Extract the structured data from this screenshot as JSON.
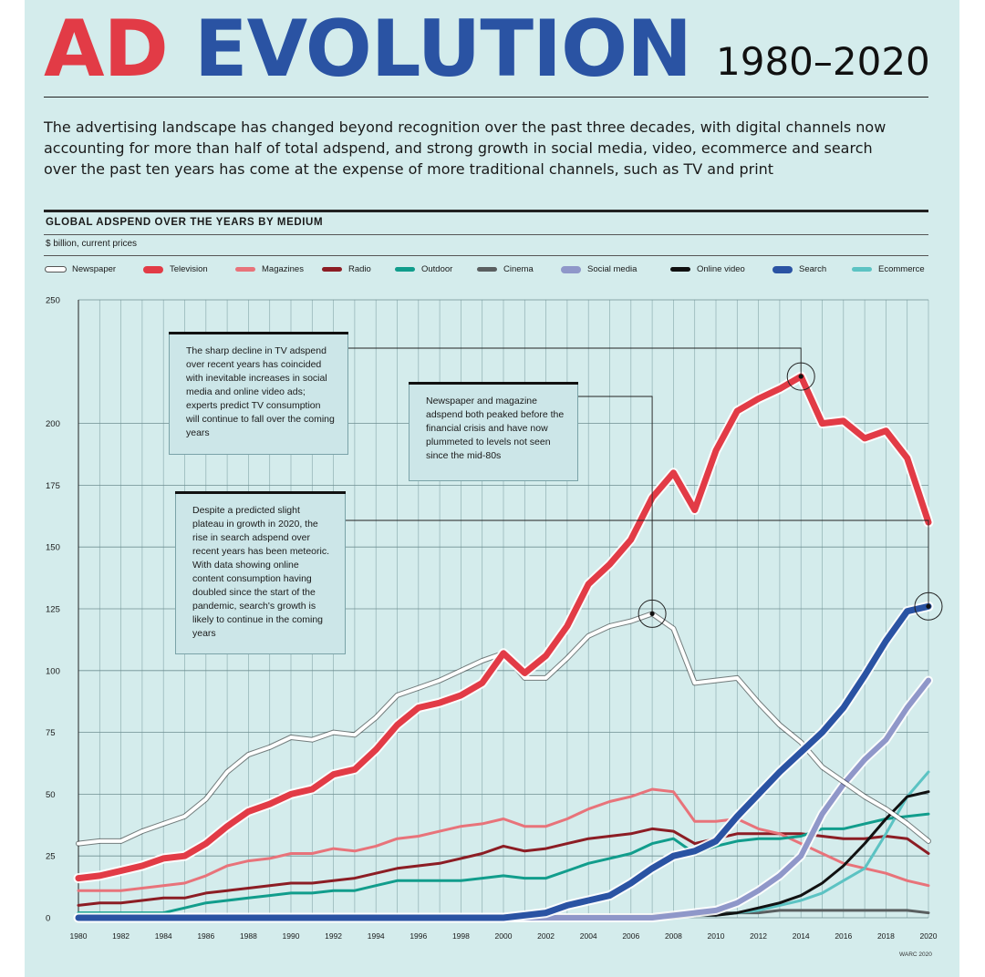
{
  "header": {
    "title_part1": "AD",
    "title_part2": "EVOLUTION",
    "years": "1980–2020",
    "intro": "The advertising landscape has changed beyond recognition over the past three decades, with digital channels now accounting for more than half of total adspend, and strong growth in social media, video, ecommerce and search over the past ten years has come at the expense of more traditional channels, such as TV and print"
  },
  "annotations": [
    "The sharp decline in TV adspend over recent years has coincided with inevitable increases in social media and online video ads; experts predict TV consumption will continue to fall over the coming years",
    "Newspaper and magazine adspend both peaked before the financial crisis and have now plummeted to levels not seen since the mid-80s",
    "Despite a predicted slight plateau in growth in 2020, the rise in search adspend over recent years has been meteoric. With data showing online content consumption having doubled since the start of the pandemic, search's growth is likely to continue in the coming years"
  ],
  "credit": "WARC 2020",
  "chart_data": {
    "type": "line",
    "title": "GLOBAL ADSPEND OVER THE YEARS BY MEDIUM",
    "ylabel": "$ billion, current prices",
    "xlabel": "",
    "ylim": [
      0,
      250
    ],
    "yticks": [
      0,
      25,
      50,
      75,
      100,
      125,
      150,
      175,
      200,
      250
    ],
    "x": [
      1980,
      1981,
      1982,
      1983,
      1984,
      1985,
      1986,
      1987,
      1988,
      1989,
      1990,
      1991,
      1992,
      1993,
      1994,
      1995,
      1996,
      1997,
      1998,
      1999,
      2000,
      2001,
      2002,
      2003,
      2004,
      2005,
      2006,
      2007,
      2008,
      2009,
      2010,
      2011,
      2012,
      2013,
      2014,
      2015,
      2016,
      2017,
      2018,
      2019,
      2020
    ],
    "xtick_labels": [
      "1980",
      "1982",
      "1984",
      "1986",
      "1988",
      "1990",
      "1992",
      "1994",
      "1996",
      "1998",
      "2000",
      "2002",
      "2004",
      "2006",
      "2008",
      "2010",
      "2012",
      "2014",
      "2016",
      "2018",
      "2020"
    ],
    "grid": true,
    "legend_position": "top",
    "series": [
      {
        "name": "Newspaper",
        "color": "#ffffff",
        "values": [
          30,
          31,
          31,
          35,
          38,
          41,
          48,
          59,
          66,
          69,
          73,
          72,
          75,
          74,
          81,
          90,
          93,
          96,
          100,
          104,
          107,
          97,
          97,
          105,
          114,
          118,
          120,
          123,
          117,
          95,
          96,
          97,
          87,
          78,
          71,
          61,
          55,
          49,
          44,
          38,
          31
        ]
      },
      {
        "name": "Television",
        "color": "#e23b46",
        "values": [
          16,
          17,
          19,
          21,
          24,
          25,
          30,
          37,
          43,
          46,
          50,
          52,
          58,
          60,
          68,
          78,
          85,
          87,
          90,
          95,
          107,
          99,
          106,
          118,
          135,
          143,
          153,
          170,
          180,
          165,
          189,
          205,
          210,
          214,
          219,
          200,
          201,
          194,
          197,
          186,
          160
        ]
      },
      {
        "name": "Magazines",
        "color": "#e8737a",
        "values": [
          11,
          11,
          11,
          12,
          13,
          14,
          17,
          21,
          23,
          24,
          26,
          26,
          28,
          27,
          29,
          32,
          33,
          35,
          37,
          38,
          40,
          37,
          37,
          40,
          44,
          47,
          49,
          52,
          51,
          39,
          39,
          40,
          36,
          34,
          30,
          26,
          22,
          20,
          18,
          15,
          13
        ]
      },
      {
        "name": "Radio",
        "color": "#8c1d24",
        "values": [
          5,
          6,
          6,
          7,
          8,
          8,
          10,
          11,
          12,
          13,
          14,
          14,
          15,
          16,
          18,
          20,
          21,
          22,
          24,
          26,
          29,
          27,
          28,
          30,
          32,
          33,
          34,
          36,
          35,
          30,
          32,
          34,
          34,
          34,
          34,
          33,
          32,
          32,
          33,
          32,
          26
        ]
      },
      {
        "name": "Outdoor",
        "color": "#119d8c",
        "values": [
          2,
          2,
          2,
          2,
          2,
          4,
          6,
          7,
          8,
          9,
          10,
          10,
          11,
          11,
          13,
          15,
          15,
          15,
          15,
          16,
          17,
          16,
          16,
          19,
          22,
          24,
          26,
          30,
          32,
          26,
          29,
          31,
          32,
          32,
          33,
          36,
          36,
          38,
          40,
          41,
          42
        ]
      },
      {
        "name": "Cinema",
        "color": "#5a5f60",
        "values": [
          0,
          0,
          0,
          0,
          0,
          0,
          0,
          0,
          0,
          0,
          0,
          0,
          0,
          0,
          0,
          0,
          0,
          0,
          0,
          0,
          1,
          1,
          1,
          1,
          1,
          1,
          1,
          1,
          2,
          2,
          2,
          2,
          2,
          3,
          3,
          3,
          3,
          3,
          3,
          3,
          2
        ]
      },
      {
        "name": "Social media",
        "color": "#8f97c9",
        "values": [
          0,
          0,
          0,
          0,
          0,
          0,
          0,
          0,
          0,
          0,
          0,
          0,
          0,
          0,
          0,
          0,
          0,
          0,
          0,
          0,
          0,
          0,
          0,
          0,
          0,
          0,
          0,
          0,
          1,
          2,
          3,
          6,
          11,
          17,
          25,
          42,
          54,
          64,
          72,
          85,
          96
        ]
      },
      {
        "name": "Online video",
        "color": "#111111",
        "values": [
          0,
          0,
          0,
          0,
          0,
          0,
          0,
          0,
          0,
          0,
          0,
          0,
          0,
          0,
          0,
          0,
          0,
          0,
          0,
          0,
          0,
          0,
          0,
          0,
          0,
          0,
          0,
          0,
          0,
          1,
          1,
          2,
          4,
          6,
          9,
          14,
          21,
          30,
          40,
          49,
          51
        ]
      },
      {
        "name": "Search",
        "color": "#2a53a3",
        "values": [
          0,
          0,
          0,
          0,
          0,
          0,
          0,
          0,
          0,
          0,
          0,
          0,
          0,
          0,
          0,
          0,
          0,
          0,
          0,
          0,
          0,
          1,
          2,
          5,
          7,
          9,
          14,
          20,
          25,
          27,
          31,
          41,
          50,
          59,
          67,
          75,
          85,
          98,
          112,
          124,
          126
        ]
      },
      {
        "name": "Ecommerce",
        "color": "#5cc3c3",
        "values": [
          0,
          0,
          0,
          0,
          0,
          0,
          0,
          0,
          0,
          0,
          0,
          0,
          0,
          0,
          0,
          0,
          0,
          0,
          0,
          0,
          0,
          0,
          0,
          0,
          0,
          0,
          0,
          0,
          0,
          1,
          1,
          2,
          3,
          5,
          7,
          10,
          15,
          20,
          34,
          49,
          59
        ]
      }
    ]
  }
}
